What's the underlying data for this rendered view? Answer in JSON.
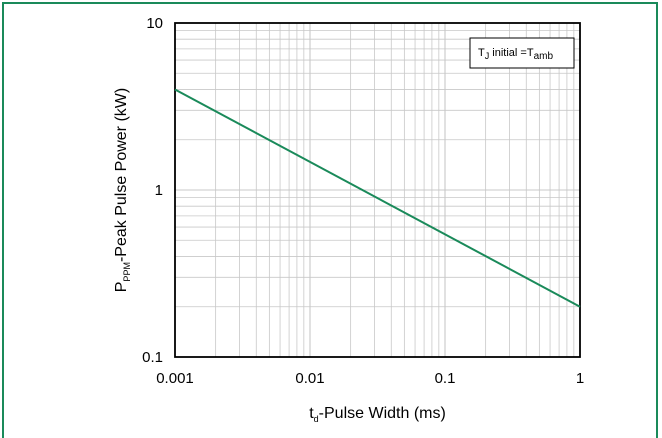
{
  "chart_data": {
    "type": "line",
    "x_scale": "log",
    "y_scale": "log",
    "xlim": [
      0.001,
      1
    ],
    "ylim": [
      0.1,
      10
    ],
    "x_ticks": [
      "0.001",
      "0.01",
      "0.1",
      "1"
    ],
    "y_ticks": [
      "0.1",
      "1",
      "10"
    ],
    "xlabel": {
      "main": "t",
      "sub": "d",
      "rest": "-Pulse Width (ms)"
    },
    "ylabel": {
      "main": "P",
      "sub": "PPM",
      "rest": "-Peak Pulse Power (kW)"
    },
    "annotation": {
      "a": "T",
      "a_sub": "J",
      "mid": " initial =T",
      "b_sub": "amb"
    },
    "grid": true,
    "series": [
      {
        "x": [
          0.001,
          1
        ],
        "y": [
          4.0,
          0.2
        ]
      }
    ],
    "colors": {
      "line": "#1a8a5a",
      "frame": "#1a8a5a",
      "grid": "#c8c8c8",
      "axes": "#000000"
    }
  }
}
